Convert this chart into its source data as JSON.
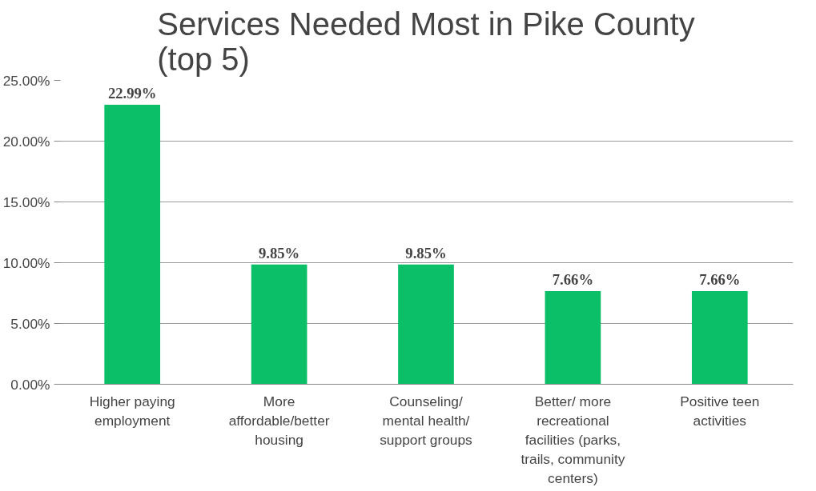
{
  "chart_data": {
    "type": "bar",
    "title": "Services Needed Most in Pike County\n(top 5)",
    "categories": [
      "Higher paying\nemployment",
      "More\naffordable/better\nhousing",
      "Counseling/\nmental health/\nsupport groups",
      "Better/ more\nrecreational\nfacilities (parks,\ntrails, community\ncenters)",
      "Positive teen\nactivities"
    ],
    "values": [
      22.99,
      9.85,
      9.85,
      7.66,
      7.66
    ],
    "value_labels": [
      "22.99%",
      "9.85%",
      "9.85%",
      "7.66%",
      "7.66%"
    ],
    "color": "#0abf67",
    "ylim": [
      0,
      25
    ],
    "yticks": [
      {
        "value": 0,
        "label": "0.00%"
      },
      {
        "value": 5,
        "label": "5.00%"
      },
      {
        "value": 10,
        "label": "10.00%"
      },
      {
        "value": 15,
        "label": "15.00%"
      },
      {
        "value": 20,
        "label": "20.00%"
      },
      {
        "value": 25,
        "label": "25.00%"
      }
    ],
    "grid": "y"
  }
}
